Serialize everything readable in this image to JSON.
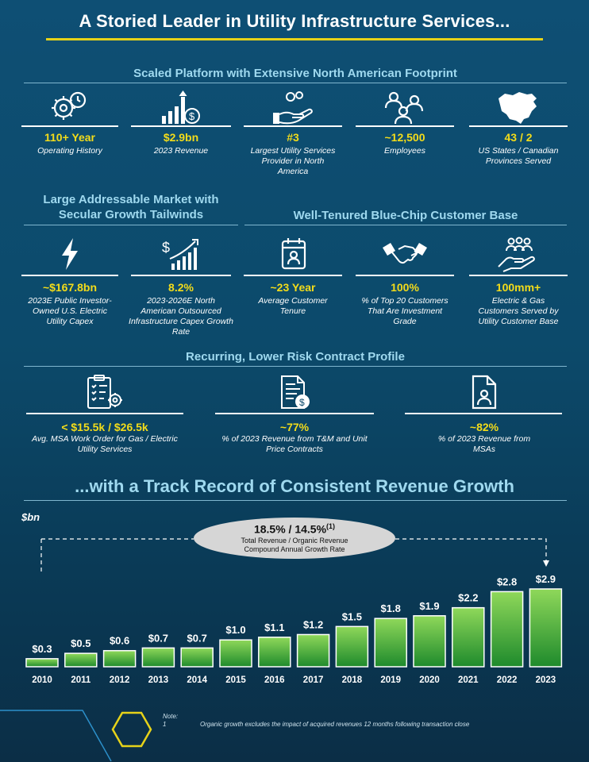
{
  "page": {
    "title": "A Storied Leader in Utility Infrastructure Services...",
    "colors": {
      "accent": "#e6d219",
      "value": "#f3dc1a",
      "section_heading": "#9fd9ef",
      "bar_top": "#8fd85a",
      "bar_bottom": "#1e8a2c"
    }
  },
  "footprint": {
    "heading": "Scaled Platform with Extensive North American Footprint",
    "items": [
      {
        "icon": "gears-clock-icon",
        "value": "110+ Year",
        "desc": "Operating History"
      },
      {
        "icon": "revenue-chart-icon",
        "value": "$2.9bn",
        "desc": "2023 Revenue"
      },
      {
        "icon": "hand-gear-icon",
        "value": "#3",
        "desc": "Largest Utility Services Provider in North America"
      },
      {
        "icon": "people-icon",
        "value": "~12,500",
        "desc": "Employees"
      },
      {
        "icon": "north-america-map-icon",
        "value": "43 / 2",
        "desc": "US States / Canadian Provinces Served"
      }
    ]
  },
  "market": {
    "heading": "Large Addressable Market with Secular Growth Tailwinds",
    "items": [
      {
        "icon": "lightning-icon",
        "value": "~$167.8bn",
        "desc": "2023E Public Investor-Owned U.S. Electric Utility Capex"
      },
      {
        "icon": "growth-chart-icon",
        "value": "8.2%",
        "desc": "2023-2026E North American Outsourced Infrastructure Capex Growth Rate"
      }
    ]
  },
  "customers": {
    "heading": "Well-Tenured Blue-Chip Customer Base",
    "items": [
      {
        "icon": "calendar-person-icon",
        "value": "~23 Year",
        "desc": "Average Customer Tenure"
      },
      {
        "icon": "handshake-icon",
        "value": "100%",
        "desc": "% of Top 20 Customers That Are Investment Grade"
      },
      {
        "icon": "customer-base-icon",
        "value": "100mm+",
        "desc": "Electric & Gas Customers Served by Utility Customer Base"
      }
    ]
  },
  "contracts": {
    "heading": "Recurring, Lower Risk Contract Profile",
    "items": [
      {
        "icon": "clipboard-gear-icon",
        "value": "< $15.5k / $26.5k",
        "desc": "Avg. MSA Work Order for Gas / Electric Utility Services"
      },
      {
        "icon": "document-dollar-icon",
        "value": "~77%",
        "desc": "% of 2023 Revenue from T&M and Unit Price Contracts"
      },
      {
        "icon": "document-person-icon",
        "value": "~82%",
        "desc": "% of 2023 Revenue from MSAs"
      }
    ]
  },
  "growth": {
    "heading": "...with a Track Record of Consistent Revenue Growth",
    "unit": "$bn",
    "cagr_value": "18.5% / 14.5%",
    "cagr_sup": "(1)",
    "cagr_desc_line1": "Total Revenue / Organic Revenue",
    "cagr_desc_line2": "Compound Annual Growth Rate"
  },
  "chart_data": {
    "type": "bar",
    "categories": [
      "2010",
      "2011",
      "2012",
      "2013",
      "2014",
      "2015",
      "2016",
      "2017",
      "2018",
      "2019",
      "2020",
      "2021",
      "2022",
      "2023"
    ],
    "values": [
      0.3,
      0.5,
      0.6,
      0.7,
      0.7,
      1.0,
      1.1,
      1.2,
      1.5,
      1.8,
      1.9,
      2.2,
      2.8,
      2.9
    ],
    "labels": [
      "$0.3",
      "$0.5",
      "$0.6",
      "$0.7",
      "$0.7",
      "$1.0",
      "$1.1",
      "$1.2",
      "$1.5",
      "$1.8",
      "$1.9",
      "$2.2",
      "$2.8",
      "$2.9"
    ],
    "ylabel": "$bn",
    "ylim": [
      0,
      2.9
    ]
  },
  "note": {
    "label": "Note:",
    "number": "1",
    "text": "Organic growth excludes the impact of acquired revenues 12 months following transaction close"
  }
}
